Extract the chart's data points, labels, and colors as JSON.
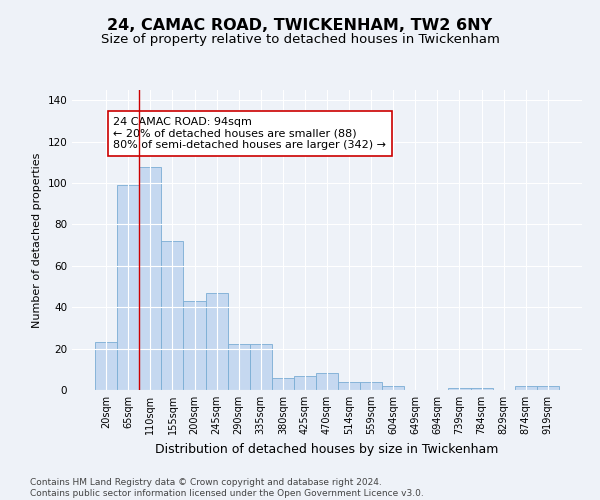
{
  "title": "24, CAMAC ROAD, TWICKENHAM, TW2 6NY",
  "subtitle": "Size of property relative to detached houses in Twickenham",
  "xlabel": "Distribution of detached houses by size in Twickenham",
  "ylabel": "Number of detached properties",
  "categories": [
    "20sqm",
    "65sqm",
    "110sqm",
    "155sqm",
    "200sqm",
    "245sqm",
    "290sqm",
    "335sqm",
    "380sqm",
    "425sqm",
    "470sqm",
    "514sqm",
    "559sqm",
    "604sqm",
    "649sqm",
    "694sqm",
    "739sqm",
    "784sqm",
    "829sqm",
    "874sqm",
    "919sqm"
  ],
  "values": [
    23,
    99,
    108,
    72,
    43,
    47,
    22,
    22,
    6,
    7,
    8,
    4,
    4,
    2,
    0,
    0,
    1,
    1,
    0,
    2,
    2
  ],
  "bar_color": "#c5d8f0",
  "bar_edge_color": "#7aadd4",
  "vline_x": 1.5,
  "vline_color": "#cc0000",
  "annotation_text": "24 CAMAC ROAD: 94sqm\n← 20% of detached houses are smaller (88)\n80% of semi-detached houses are larger (342) →",
  "annotation_box_color": "#ffffff",
  "annotation_box_edge": "#cc0000",
  "ylim": [
    0,
    145
  ],
  "yticks": [
    0,
    20,
    40,
    60,
    80,
    100,
    120,
    140
  ],
  "bg_color": "#eef2f8",
  "plot_bg": "#eef2f8",
  "footer": "Contains HM Land Registry data © Crown copyright and database right 2024.\nContains public sector information licensed under the Open Government Licence v3.0.",
  "title_fontsize": 11.5,
  "subtitle_fontsize": 9.5,
  "xlabel_fontsize": 9,
  "ylabel_fontsize": 8,
  "footer_fontsize": 6.5,
  "annotation_fontsize": 8,
  "tick_fontsize": 7
}
